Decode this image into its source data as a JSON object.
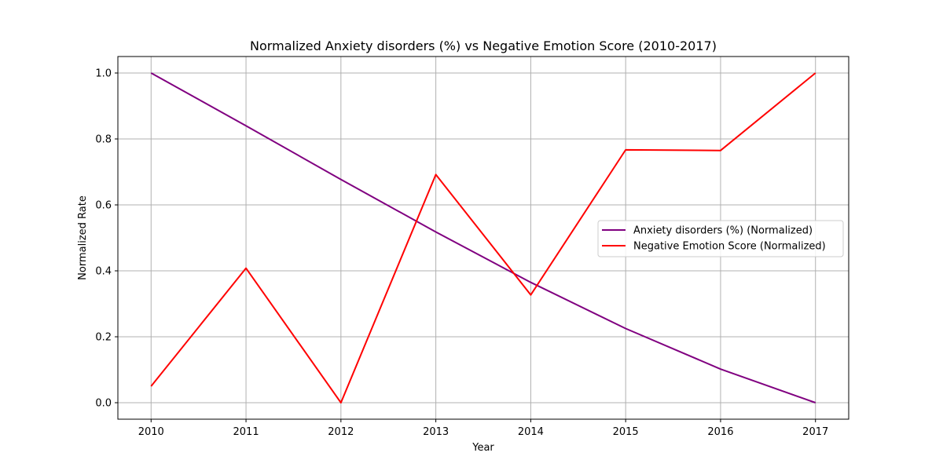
{
  "chart_data": {
    "type": "line",
    "title": "Normalized Anxiety disorders (%) vs Negative Emotion Score (2010-2017)",
    "xlabel": "Year",
    "ylabel": "Normalized Rate",
    "x": [
      2010,
      2011,
      2012,
      2013,
      2014,
      2015,
      2016,
      2017
    ],
    "x_tick_labels": [
      "2010",
      "2011",
      "2012",
      "2013",
      "2014",
      "2015",
      "2016",
      "2017"
    ],
    "xlim": [
      2009.65,
      2017.35
    ],
    "ylim": [
      -0.05,
      1.05
    ],
    "y_ticks": [
      0.0,
      0.2,
      0.4,
      0.6,
      0.8,
      1.0
    ],
    "y_tick_labels": [
      "0.0",
      "0.2",
      "0.4",
      "0.6",
      "0.8",
      "1.0"
    ],
    "grid": true,
    "legend_position": "center-right",
    "series": [
      {
        "name": "Anxiety disorders (%) (Normalized)",
        "color": "#800080",
        "values": [
          1.0,
          0.84,
          0.677,
          0.518,
          0.365,
          0.225,
          0.102,
          0.0
        ]
      },
      {
        "name": "Negative Emotion Score (Normalized)",
        "color": "#ff0000",
        "values": [
          0.05,
          0.408,
          0.0,
          0.692,
          0.327,
          0.767,
          0.765,
          1.0
        ]
      }
    ]
  }
}
